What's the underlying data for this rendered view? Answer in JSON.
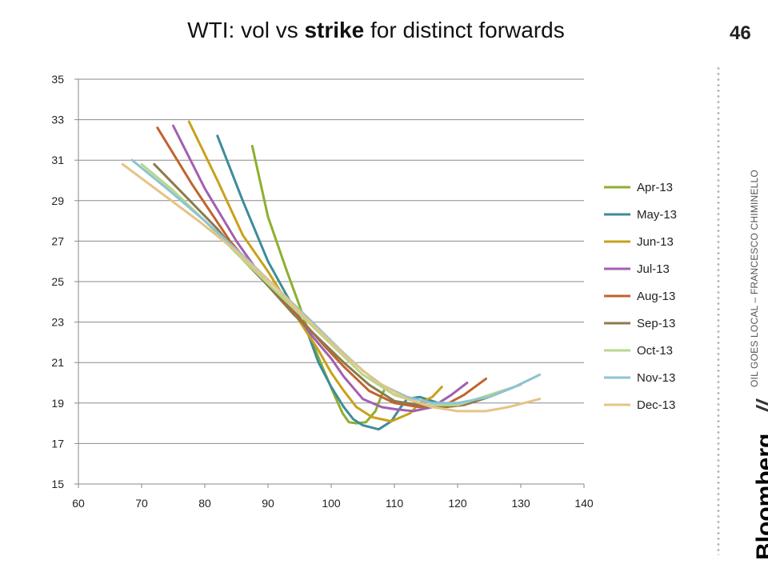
{
  "page": {
    "title_pre": "WTI: vol vs ",
    "title_bold": "strike",
    "title_post": " for distinct forwards",
    "page_number": "46",
    "brand": "Bloomberg",
    "brand_slashes": "//",
    "author": "OIL GOES LOCAL – FRANCESCO CHIMINELLO"
  },
  "chart_data": {
    "type": "line",
    "title": "WTI: vol vs strike for distinct forwards",
    "xlabel": "",
    "ylabel": "",
    "xlim": [
      60,
      140
    ],
    "ylim": [
      15,
      35
    ],
    "xticks": [
      60,
      70,
      80,
      90,
      100,
      110,
      120,
      130,
      140
    ],
    "yticks": [
      15,
      17,
      19,
      21,
      23,
      25,
      27,
      29,
      31,
      33,
      35
    ],
    "grid": "horizontal",
    "legend": "right",
    "series": [
      {
        "name": "Apr-13",
        "color": "#8DB02E",
        "points": [
          [
            87.5,
            31.7
          ],
          [
            90,
            28.2
          ],
          [
            93,
            25.5
          ],
          [
            95,
            23.8
          ],
          [
            97,
            22
          ],
          [
            99,
            20.5
          ],
          [
            100.5,
            19.4
          ],
          [
            101.8,
            18.5
          ],
          [
            102.8,
            18.05
          ],
          [
            104,
            18
          ],
          [
            105.5,
            18.05
          ],
          [
            107,
            18.6
          ],
          [
            108,
            19.4
          ],
          [
            108.5,
            19.7
          ]
        ]
      },
      {
        "name": "May-13",
        "color": "#3E8C9A",
        "points": [
          [
            82,
            32.2
          ],
          [
            86,
            29
          ],
          [
            90,
            26
          ],
          [
            93,
            24.3
          ],
          [
            96,
            22.7
          ],
          [
            98,
            21
          ],
          [
            100,
            19.8
          ],
          [
            102,
            18.8
          ],
          [
            103.5,
            18.2
          ],
          [
            105,
            17.9
          ],
          [
            107.5,
            17.7
          ],
          [
            109.5,
            18.1
          ],
          [
            111,
            18.8
          ],
          [
            112,
            19.2
          ],
          [
            114,
            19.3
          ],
          [
            116,
            19.1
          ],
          [
            117,
            19
          ]
        ]
      },
      {
        "name": "Jun-13",
        "color": "#C9A11A",
        "points": [
          [
            77.5,
            32.9
          ],
          [
            82,
            30
          ],
          [
            86,
            27.3
          ],
          [
            90,
            25.5
          ],
          [
            93,
            24
          ],
          [
            95.5,
            22.8
          ],
          [
            98,
            21.6
          ],
          [
            100,
            20.5
          ],
          [
            102,
            19.6
          ],
          [
            104,
            18.8
          ],
          [
            106.5,
            18.3
          ],
          [
            109.5,
            18.1
          ],
          [
            112.5,
            18.5
          ],
          [
            114,
            19
          ],
          [
            116,
            19.3
          ],
          [
            117.5,
            19.8
          ]
        ]
      },
      {
        "name": "Jul-13",
        "color": "#A260B0",
        "points": [
          [
            75,
            32.7
          ],
          [
            80,
            29.6
          ],
          [
            85,
            27
          ],
          [
            90,
            24.8
          ],
          [
            94,
            23.6
          ],
          [
            97,
            22.3
          ],
          [
            100,
            21.2
          ],
          [
            102,
            20.3
          ],
          [
            105,
            19.2
          ],
          [
            108,
            18.8
          ],
          [
            110,
            18.7
          ],
          [
            113,
            18.6
          ],
          [
            116,
            18.8
          ],
          [
            119,
            19.4
          ],
          [
            121.5,
            20
          ]
        ]
      },
      {
        "name": "Aug-13",
        "color": "#C0642D",
        "points": [
          [
            72.5,
            32.6
          ],
          [
            78,
            29.8
          ],
          [
            84,
            27
          ],
          [
            90,
            24.8
          ],
          [
            95,
            23.2
          ],
          [
            99,
            21.8
          ],
          [
            102,
            20.8
          ],
          [
            106,
            19.6
          ],
          [
            110,
            19
          ],
          [
            114,
            18.8
          ],
          [
            118,
            18.9
          ],
          [
            121,
            19.4
          ],
          [
            124.5,
            20.2
          ]
        ]
      },
      {
        "name": "Sep-13",
        "color": "#8C7A4E",
        "points": [
          [
            72,
            30.8
          ],
          [
            77,
            29.2
          ],
          [
            82,
            27.6
          ],
          [
            86,
            26.1
          ],
          [
            90,
            24.8
          ],
          [
            94,
            23.4
          ],
          [
            98,
            22.2
          ],
          [
            102,
            21
          ],
          [
            106,
            19.9
          ],
          [
            110,
            19.1
          ],
          [
            114,
            18.9
          ],
          [
            118,
            18.8
          ],
          [
            121,
            18.9
          ],
          [
            125,
            19.3
          ],
          [
            129,
            19.8
          ]
        ]
      },
      {
        "name": "Oct-13",
        "color": "#B7D88D",
        "points": [
          [
            70,
            30.8
          ],
          [
            75,
            29.5
          ],
          [
            80,
            28
          ],
          [
            85,
            26.4
          ],
          [
            90,
            24.9
          ],
          [
            95,
            23.4
          ],
          [
            100,
            21.9
          ],
          [
            105,
            20.4
          ],
          [
            110,
            19.4
          ],
          [
            115,
            18.9
          ],
          [
            120,
            18.9
          ],
          [
            125,
            19.4
          ],
          [
            130,
            19.9
          ]
        ]
      },
      {
        "name": "Nov-13",
        "color": "#8EC3D2",
        "points": [
          [
            68.5,
            31
          ],
          [
            74,
            29.6
          ],
          [
            80,
            28
          ],
          [
            86,
            26.3
          ],
          [
            92,
            24.5
          ],
          [
            97,
            23
          ],
          [
            101.5,
            21.6
          ],
          [
            105,
            20.6
          ],
          [
            108,
            19.9
          ],
          [
            112,
            19.3
          ],
          [
            116,
            19
          ],
          [
            120,
            19
          ],
          [
            125,
            19.3
          ],
          [
            129,
            19.8
          ],
          [
            133,
            20.4
          ]
        ]
      },
      {
        "name": "Dec-13",
        "color": "#E6C385",
        "points": [
          [
            67,
            30.8
          ],
          [
            73,
            29.4
          ],
          [
            79,
            28
          ],
          [
            85,
            26.5
          ],
          [
            91,
            24.8
          ],
          [
            96,
            23.2
          ],
          [
            102,
            21.4
          ],
          [
            107,
            20.1
          ],
          [
            112,
            19.2
          ],
          [
            116,
            18.8
          ],
          [
            120,
            18.6
          ],
          [
            124.5,
            18.6
          ],
          [
            128,
            18.8
          ],
          [
            133,
            19.2
          ]
        ]
      }
    ]
  }
}
